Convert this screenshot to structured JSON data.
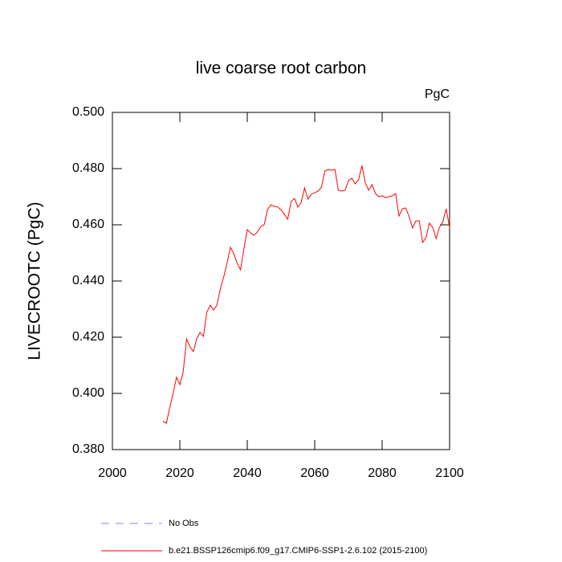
{
  "chart_data": {
    "type": "line",
    "title": "live coarse root carbon",
    "units": "PgC",
    "y_label": "LIVECROOTC  (PgC)",
    "xlim": [
      2000,
      2100
    ],
    "xticks": [
      2000,
      2020,
      2040,
      2060,
      2080,
      2100
    ],
    "ylim": [
      0.38,
      0.5
    ],
    "yticks": [
      {
        "value": 0.38,
        "label": "0.380"
      },
      {
        "value": 0.4,
        "label": "0.400"
      },
      {
        "value": 0.42,
        "label": "0.420"
      },
      {
        "value": 0.44,
        "label": "0.440"
      },
      {
        "value": 0.46,
        "label": "0.460"
      },
      {
        "value": 0.48,
        "label": "0.480"
      },
      {
        "value": 0.5,
        "label": "0.500"
      }
    ],
    "no_obs_label": "No Obs",
    "no_obs_color": "#8080ff",
    "x": [
      2015,
      2016,
      2017,
      2018,
      2019,
      2020,
      2021,
      2022,
      2023,
      2024,
      2025,
      2026,
      2027,
      2028,
      2029,
      2030,
      2031,
      2032,
      2033,
      2034,
      2035,
      2036,
      2037,
      2038,
      2039,
      2040,
      2041,
      2042,
      2043,
      2044,
      2045,
      2046,
      2047,
      2048,
      2049,
      2050,
      2051,
      2052,
      2053,
      2054,
      2055,
      2056,
      2057,
      2058,
      2059,
      2060,
      2061,
      2062,
      2063,
      2064,
      2065,
      2066,
      2067,
      2068,
      2069,
      2070,
      2071,
      2072,
      2073,
      2074,
      2075,
      2076,
      2077,
      2078,
      2079,
      2080,
      2081,
      2082,
      2083,
      2084,
      2085,
      2086,
      2087,
      2088,
      2089,
      2090,
      2091,
      2092,
      2093,
      2094,
      2095,
      2096,
      2097,
      2098,
      2099,
      2100
    ],
    "series": [
      {
        "name": "b.e21.BSSP126cmip6.f09_g17.CMIP6-SSP1-2.6.102 (2015-2100)",
        "color": "#ff0000",
        "values": [
          0.39,
          0.3894,
          0.3949,
          0.4,
          0.4057,
          0.4031,
          0.4077,
          0.4194,
          0.4166,
          0.4149,
          0.4194,
          0.4217,
          0.4203,
          0.4289,
          0.4314,
          0.4297,
          0.4314,
          0.4371,
          0.4414,
          0.4463,
          0.452,
          0.4497,
          0.4463,
          0.444,
          0.4514,
          0.4583,
          0.4571,
          0.4563,
          0.4574,
          0.4594,
          0.46,
          0.4654,
          0.4671,
          0.4666,
          0.4663,
          0.4654,
          0.4637,
          0.462,
          0.4683,
          0.4694,
          0.4663,
          0.468,
          0.4731,
          0.4691,
          0.4709,
          0.4714,
          0.472,
          0.4734,
          0.4791,
          0.4797,
          0.4794,
          0.4797,
          0.4723,
          0.472,
          0.4723,
          0.4757,
          0.4766,
          0.4746,
          0.476,
          0.4811,
          0.4749,
          0.4723,
          0.4743,
          0.4711,
          0.47,
          0.4703,
          0.4697,
          0.47,
          0.4703,
          0.4711,
          0.4631,
          0.4657,
          0.466,
          0.4629,
          0.4589,
          0.4614,
          0.4614,
          0.4537,
          0.4554,
          0.4606,
          0.4591,
          0.4551,
          0.4591,
          0.4611,
          0.4657,
          0.4589
        ]
      }
    ]
  }
}
